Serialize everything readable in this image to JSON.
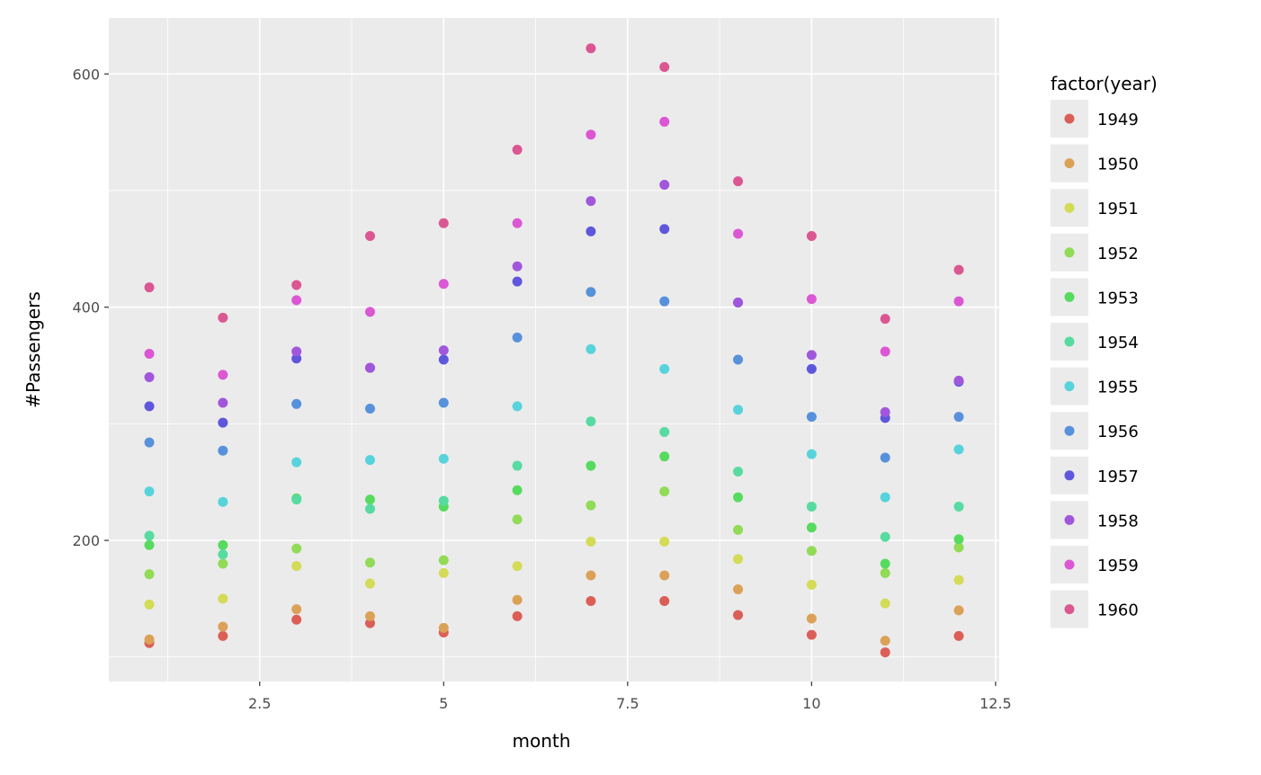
{
  "chart_data": {
    "type": "scatter",
    "title": "",
    "xlabel": "month",
    "ylabel": "#Passengers",
    "xlim": [
      0.45,
      12.55
    ],
    "ylim": [
      79,
      648
    ],
    "xticks": [
      2.5,
      5,
      7.5,
      10,
      12.5
    ],
    "xtick_labels": [
      "2.5",
      "5",
      "7.5",
      "10",
      "12.5"
    ],
    "yticks": [
      200,
      400,
      600
    ],
    "ytick_labels": [
      "200",
      "400",
      "600"
    ],
    "grid": true,
    "legend": {
      "title": "factor(year)",
      "placement": "right"
    },
    "x": [
      1,
      2,
      3,
      4,
      5,
      6,
      7,
      8,
      9,
      10,
      11,
      12
    ],
    "series": [
      {
        "name": "1949",
        "color": "#db5f57",
        "values": [
          112,
          118,
          132,
          129,
          121,
          135,
          148,
          148,
          136,
          119,
          104,
          118
        ]
      },
      {
        "name": "1950",
        "color": "#dba157",
        "values": [
          115,
          126,
          141,
          135,
          125,
          149,
          170,
          170,
          158,
          133,
          114,
          140
        ]
      },
      {
        "name": "1951",
        "color": "#d3db57",
        "values": [
          145,
          150,
          178,
          163,
          172,
          178,
          199,
          199,
          184,
          162,
          146,
          166
        ]
      },
      {
        "name": "1952",
        "color": "#91db57",
        "values": [
          171,
          180,
          193,
          181,
          183,
          218,
          230,
          242,
          209,
          191,
          172,
          194
        ]
      },
      {
        "name": "1953",
        "color": "#57db5f",
        "values": [
          196,
          196,
          236,
          235,
          229,
          243,
          264,
          272,
          237,
          211,
          180,
          201
        ]
      },
      {
        "name": "1954",
        "color": "#57dba1",
        "values": [
          204,
          188,
          235,
          227,
          234,
          264,
          302,
          293,
          259,
          229,
          203,
          229
        ]
      },
      {
        "name": "1955",
        "color": "#57d3db",
        "values": [
          242,
          233,
          267,
          269,
          270,
          315,
          364,
          347,
          312,
          274,
          237,
          278
        ]
      },
      {
        "name": "1956",
        "color": "#5791db",
        "values": [
          284,
          277,
          317,
          313,
          318,
          374,
          413,
          405,
          355,
          306,
          271,
          306
        ]
      },
      {
        "name": "1957",
        "color": "#5f57db",
        "values": [
          315,
          301,
          356,
          348,
          355,
          422,
          465,
          467,
          404,
          347,
          305,
          336
        ]
      },
      {
        "name": "1958",
        "color": "#a157db",
        "values": [
          340,
          318,
          362,
          348,
          363,
          435,
          491,
          505,
          404,
          359,
          310,
          337
        ]
      },
      {
        "name": "1959",
        "color": "#db57d3",
        "values": [
          360,
          342,
          406,
          396,
          420,
          472,
          548,
          559,
          463,
          407,
          362,
          405
        ]
      },
      {
        "name": "1960",
        "color": "#db5791",
        "values": [
          417,
          391,
          419,
          461,
          472,
          535,
          622,
          606,
          508,
          461,
          390,
          432
        ]
      }
    ]
  }
}
